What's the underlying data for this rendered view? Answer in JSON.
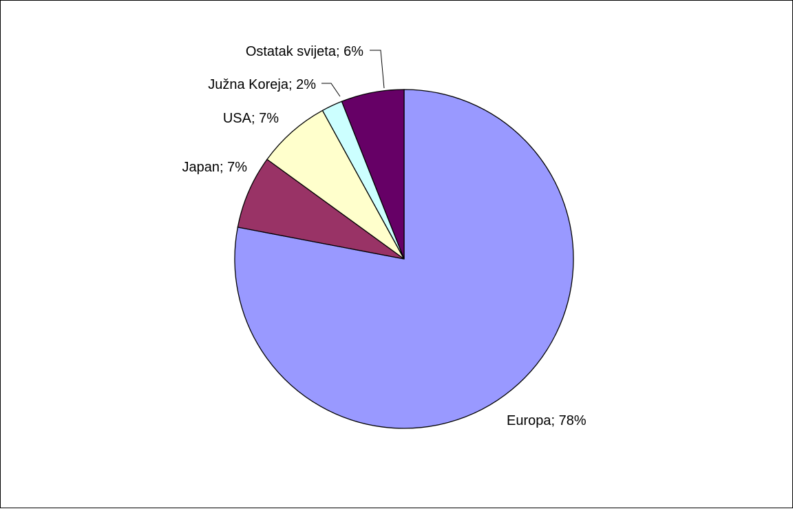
{
  "chart_data": {
    "type": "pie",
    "title": "",
    "start_angle_deg": 90,
    "direction": "clockwise",
    "legend": "none",
    "slices": [
      {
        "label": "Europa",
        "value": 78,
        "data_label": "Europa; 78%",
        "color": "#9999FF"
      },
      {
        "label": "Japan",
        "value": 7,
        "data_label": "Japan; 7%",
        "color": "#993366"
      },
      {
        "label": "USA",
        "value": 7,
        "data_label": "USA; 7%",
        "color": "#FFFFCC"
      },
      {
        "label": "Južna Koreja",
        "value": 2,
        "data_label": "Južna Koreja; 2%",
        "color": "#CCFFFF"
      },
      {
        "label": "Ostatak svijeta",
        "value": 6,
        "data_label": "Ostatak svijeta; 6%",
        "color": "#660066"
      }
    ]
  }
}
